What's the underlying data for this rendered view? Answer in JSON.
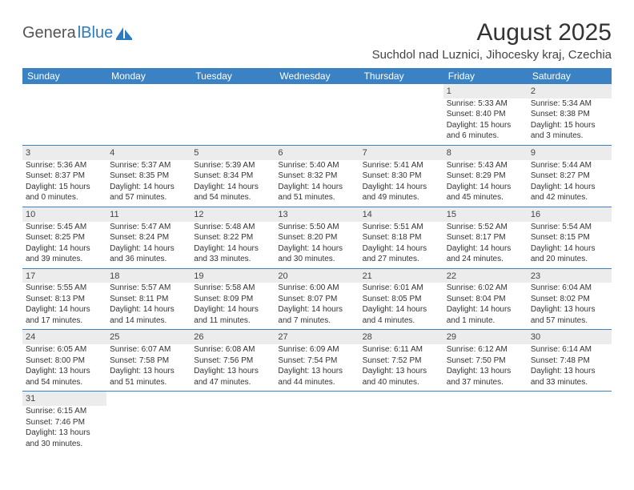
{
  "logo": {
    "text_dark": "Genera",
    "text_blue": "lBlue",
    "icon_fill": "#2b7bbf"
  },
  "title": "August 2025",
  "location": "Suchdol nad Luznici, Jihocesky kraj, Czechia",
  "header_bg": "#3a82c4",
  "header_fg": "#ffffff",
  "shaded_bg": "#ececec",
  "border_color": "#3a82c4",
  "day_names": [
    "Sunday",
    "Monday",
    "Tuesday",
    "Wednesday",
    "Thursday",
    "Friday",
    "Saturday"
  ],
  "weeks": [
    [
      {
        "n": "",
        "lines": []
      },
      {
        "n": "",
        "lines": []
      },
      {
        "n": "",
        "lines": []
      },
      {
        "n": "",
        "lines": []
      },
      {
        "n": "",
        "lines": []
      },
      {
        "n": "1",
        "lines": [
          "Sunrise: 5:33 AM",
          "Sunset: 8:40 PM",
          "Daylight: 15 hours",
          "and 6 minutes."
        ]
      },
      {
        "n": "2",
        "lines": [
          "Sunrise: 5:34 AM",
          "Sunset: 8:38 PM",
          "Daylight: 15 hours",
          "and 3 minutes."
        ]
      }
    ],
    [
      {
        "n": "3",
        "lines": [
          "Sunrise: 5:36 AM",
          "Sunset: 8:37 PM",
          "Daylight: 15 hours",
          "and 0 minutes."
        ]
      },
      {
        "n": "4",
        "lines": [
          "Sunrise: 5:37 AM",
          "Sunset: 8:35 PM",
          "Daylight: 14 hours",
          "and 57 minutes."
        ]
      },
      {
        "n": "5",
        "lines": [
          "Sunrise: 5:39 AM",
          "Sunset: 8:34 PM",
          "Daylight: 14 hours",
          "and 54 minutes."
        ]
      },
      {
        "n": "6",
        "lines": [
          "Sunrise: 5:40 AM",
          "Sunset: 8:32 PM",
          "Daylight: 14 hours",
          "and 51 minutes."
        ]
      },
      {
        "n": "7",
        "lines": [
          "Sunrise: 5:41 AM",
          "Sunset: 8:30 PM",
          "Daylight: 14 hours",
          "and 49 minutes."
        ]
      },
      {
        "n": "8",
        "lines": [
          "Sunrise: 5:43 AM",
          "Sunset: 8:29 PM",
          "Daylight: 14 hours",
          "and 45 minutes."
        ]
      },
      {
        "n": "9",
        "lines": [
          "Sunrise: 5:44 AM",
          "Sunset: 8:27 PM",
          "Daylight: 14 hours",
          "and 42 minutes."
        ]
      }
    ],
    [
      {
        "n": "10",
        "lines": [
          "Sunrise: 5:45 AM",
          "Sunset: 8:25 PM",
          "Daylight: 14 hours",
          "and 39 minutes."
        ]
      },
      {
        "n": "11",
        "lines": [
          "Sunrise: 5:47 AM",
          "Sunset: 8:24 PM",
          "Daylight: 14 hours",
          "and 36 minutes."
        ]
      },
      {
        "n": "12",
        "lines": [
          "Sunrise: 5:48 AM",
          "Sunset: 8:22 PM",
          "Daylight: 14 hours",
          "and 33 minutes."
        ]
      },
      {
        "n": "13",
        "lines": [
          "Sunrise: 5:50 AM",
          "Sunset: 8:20 PM",
          "Daylight: 14 hours",
          "and 30 minutes."
        ]
      },
      {
        "n": "14",
        "lines": [
          "Sunrise: 5:51 AM",
          "Sunset: 8:18 PM",
          "Daylight: 14 hours",
          "and 27 minutes."
        ]
      },
      {
        "n": "15",
        "lines": [
          "Sunrise: 5:52 AM",
          "Sunset: 8:17 PM",
          "Daylight: 14 hours",
          "and 24 minutes."
        ]
      },
      {
        "n": "16",
        "lines": [
          "Sunrise: 5:54 AM",
          "Sunset: 8:15 PM",
          "Daylight: 14 hours",
          "and 20 minutes."
        ]
      }
    ],
    [
      {
        "n": "17",
        "lines": [
          "Sunrise: 5:55 AM",
          "Sunset: 8:13 PM",
          "Daylight: 14 hours",
          "and 17 minutes."
        ]
      },
      {
        "n": "18",
        "lines": [
          "Sunrise: 5:57 AM",
          "Sunset: 8:11 PM",
          "Daylight: 14 hours",
          "and 14 minutes."
        ]
      },
      {
        "n": "19",
        "lines": [
          "Sunrise: 5:58 AM",
          "Sunset: 8:09 PM",
          "Daylight: 14 hours",
          "and 11 minutes."
        ]
      },
      {
        "n": "20",
        "lines": [
          "Sunrise: 6:00 AM",
          "Sunset: 8:07 PM",
          "Daylight: 14 hours",
          "and 7 minutes."
        ]
      },
      {
        "n": "21",
        "lines": [
          "Sunrise: 6:01 AM",
          "Sunset: 8:05 PM",
          "Daylight: 14 hours",
          "and 4 minutes."
        ]
      },
      {
        "n": "22",
        "lines": [
          "Sunrise: 6:02 AM",
          "Sunset: 8:04 PM",
          "Daylight: 14 hours",
          "and 1 minute."
        ]
      },
      {
        "n": "23",
        "lines": [
          "Sunrise: 6:04 AM",
          "Sunset: 8:02 PM",
          "Daylight: 13 hours",
          "and 57 minutes."
        ]
      }
    ],
    [
      {
        "n": "24",
        "lines": [
          "Sunrise: 6:05 AM",
          "Sunset: 8:00 PM",
          "Daylight: 13 hours",
          "and 54 minutes."
        ]
      },
      {
        "n": "25",
        "lines": [
          "Sunrise: 6:07 AM",
          "Sunset: 7:58 PM",
          "Daylight: 13 hours",
          "and 51 minutes."
        ]
      },
      {
        "n": "26",
        "lines": [
          "Sunrise: 6:08 AM",
          "Sunset: 7:56 PM",
          "Daylight: 13 hours",
          "and 47 minutes."
        ]
      },
      {
        "n": "27",
        "lines": [
          "Sunrise: 6:09 AM",
          "Sunset: 7:54 PM",
          "Daylight: 13 hours",
          "and 44 minutes."
        ]
      },
      {
        "n": "28",
        "lines": [
          "Sunrise: 6:11 AM",
          "Sunset: 7:52 PM",
          "Daylight: 13 hours",
          "and 40 minutes."
        ]
      },
      {
        "n": "29",
        "lines": [
          "Sunrise: 6:12 AM",
          "Sunset: 7:50 PM",
          "Daylight: 13 hours",
          "and 37 minutes."
        ]
      },
      {
        "n": "30",
        "lines": [
          "Sunrise: 6:14 AM",
          "Sunset: 7:48 PM",
          "Daylight: 13 hours",
          "and 33 minutes."
        ]
      }
    ],
    [
      {
        "n": "31",
        "lines": [
          "Sunrise: 6:15 AM",
          "Sunset: 7:46 PM",
          "Daylight: 13 hours",
          "and 30 minutes."
        ]
      },
      {
        "n": "",
        "lines": []
      },
      {
        "n": "",
        "lines": []
      },
      {
        "n": "",
        "lines": []
      },
      {
        "n": "",
        "lines": []
      },
      {
        "n": "",
        "lines": []
      },
      {
        "n": "",
        "lines": []
      }
    ]
  ]
}
